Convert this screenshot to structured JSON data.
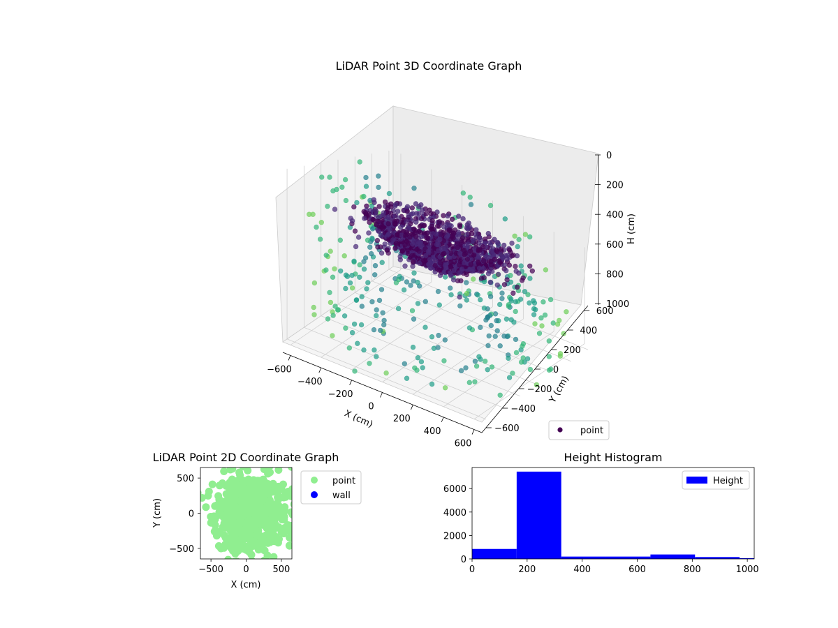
{
  "chart_data": [
    {
      "type": "scatter",
      "projection": "3d",
      "title": "LiDAR Point 3D Coordinate Graph",
      "xlabel": "X (cm)",
      "ylabel": "Y (cm)",
      "zlabel": "H (cm)",
      "xticks": [
        -600,
        -400,
        -200,
        0,
        200,
        400,
        600
      ],
      "yticks": [
        -600,
        -400,
        -200,
        0,
        200,
        400,
        600
      ],
      "zticks": [
        0,
        200,
        400,
        600,
        800,
        1000
      ],
      "xlim": [
        -650,
        650
      ],
      "ylim": [
        -650,
        650
      ],
      "zlim": [
        0,
        1000
      ],
      "z_axis_inverted": true,
      "colormap": "viridis",
      "legend": [
        {
          "label": "point",
          "color": "#440154"
        }
      ],
      "legend_loc": "lower right",
      "grid": true
    },
    {
      "type": "scatter",
      "title": "LiDAR Point 2D Coordinate Graph",
      "xlabel": "X (cm)",
      "ylabel": "Y (cm)",
      "xticks": [
        -500,
        0,
        500
      ],
      "yticks": [
        500,
        0,
        -500
      ],
      "xlim": [
        -650,
        650
      ],
      "ylim": [
        -650,
        650
      ],
      "series": [
        {
          "name": "point",
          "color": "#90ee90"
        },
        {
          "name": "wall",
          "color": "#0000ff",
          "values": []
        }
      ],
      "legend_loc": "outside upper right"
    },
    {
      "type": "bar",
      "title": "Height Histogram",
      "xticks": [
        0,
        200,
        400,
        600,
        800,
        1000
      ],
      "yticks": [
        0,
        2000,
        4000,
        6000
      ],
      "xlim": [
        0,
        1025
      ],
      "ylim": [
        0,
        7800
      ],
      "bins": [
        {
          "x0": 0,
          "x1": 162,
          "count": 850
        },
        {
          "x0": 162,
          "x1": 324,
          "count": 7450
        },
        {
          "x0": 324,
          "x1": 486,
          "count": 200
        },
        {
          "x0": 486,
          "x1": 648,
          "count": 200
        },
        {
          "x0": 648,
          "x1": 810,
          "count": 380
        },
        {
          "x0": 810,
          "x1": 972,
          "count": 160
        },
        {
          "x0": 972,
          "x1": 1025,
          "count": 60
        }
      ],
      "series": [
        {
          "name": "Height",
          "color": "#0000ff"
        }
      ],
      "legend_loc": "upper right"
    }
  ]
}
